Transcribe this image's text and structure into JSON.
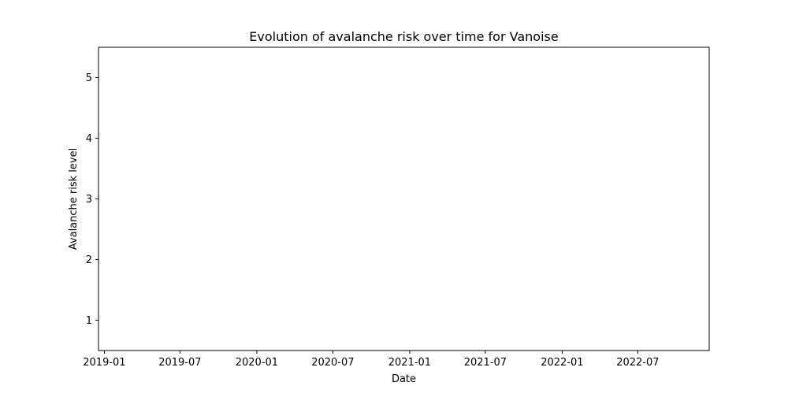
{
  "chart_data": {
    "type": "line",
    "title": "Evolution of avalanche risk over time for Vanoise",
    "xlabel": "Date",
    "ylabel": "Avalanche risk level",
    "x_tick_labels": [
      "2019-01",
      "2019-07",
      "2020-01",
      "2020-07",
      "2021-01",
      "2021-07",
      "2022-01",
      "2022-07"
    ],
    "x_ticks": [
      "2019-01-01",
      "2019-07-01",
      "2020-01-01",
      "2020-07-01",
      "2021-01-01",
      "2021-07-01",
      "2022-01-01",
      "2022-07-01"
    ],
    "y_ticks": [
      1,
      2,
      3,
      4,
      5
    ],
    "xlim": [
      "2018-12-18",
      "2022-12-19"
    ],
    "ylim": [
      0.5,
      5.5
    ],
    "grid": false,
    "series": []
  }
}
